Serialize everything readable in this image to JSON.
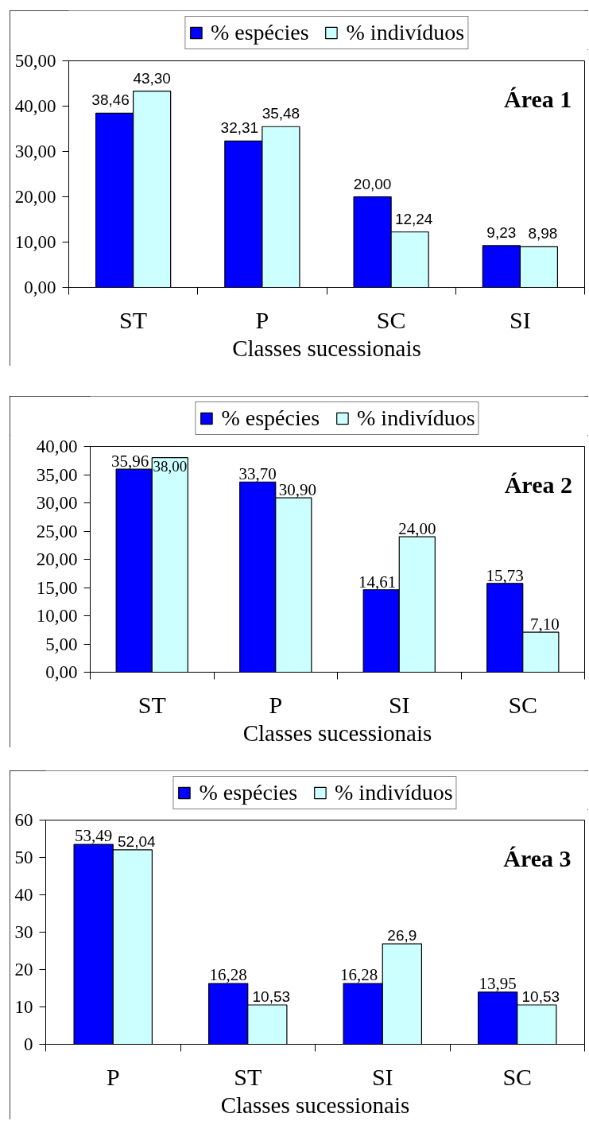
{
  "chart_data": [
    {
      "type": "bar",
      "title": "Área 1",
      "xlabel": "Classes sucessionais",
      "categories": [
        "ST",
        "P",
        "SC",
        "SI"
      ],
      "series": [
        {
          "name": "% espécies",
          "color": "#0000ff",
          "values": [
            38.46,
            32.31,
            20.0,
            9.23
          ],
          "value_labels": [
            "38,46",
            "32,31",
            "20,00",
            "9,23"
          ]
        },
        {
          "name": "% indivíduos",
          "color": "#ccffff",
          "values": [
            43.3,
            35.48,
            12.24,
            8.98
          ],
          "value_labels": [
            "43,30",
            "35,48",
            "12,24",
            "8,98"
          ]
        }
      ],
      "ylim": [
        0,
        50
      ],
      "yticks": [
        {
          "value": 0,
          "label": "0,00"
        },
        {
          "value": 10,
          "label": "10,00"
        },
        {
          "value": 20,
          "label": "20,00"
        },
        {
          "value": 30,
          "label": "30,00"
        },
        {
          "value": 40,
          "label": "40,00"
        },
        {
          "value": 50,
          "label": "50,00"
        }
      ],
      "legend": "top",
      "grid": false
    },
    {
      "type": "bar",
      "title": "Área 2",
      "xlabel": "Classes sucessionais",
      "categories": [
        "ST",
        "P",
        "SI",
        "SC"
      ],
      "series": [
        {
          "name": "% espécies",
          "color": "#0000ff",
          "values": [
            35.96,
            33.7,
            14.61,
            15.73
          ],
          "value_labels": [
            "35,96",
            "33,70",
            "14,61",
            "15,73"
          ]
        },
        {
          "name": "% indivíduos",
          "color": "#ccffff",
          "values": [
            38.0,
            30.9,
            24.0,
            7.1
          ],
          "value_labels": [
            "38,00",
            "30,90",
            "24,00",
            "7,10"
          ]
        }
      ],
      "ylim": [
        0,
        40
      ],
      "yticks": [
        {
          "value": 0,
          "label": "0,00"
        },
        {
          "value": 5,
          "label": "5,00"
        },
        {
          "value": 10,
          "label": "10,00"
        },
        {
          "value": 15,
          "label": "15,00"
        },
        {
          "value": 20,
          "label": "20,00"
        },
        {
          "value": 25,
          "label": "25,00"
        },
        {
          "value": 30,
          "label": "30,00"
        },
        {
          "value": 35,
          "label": "35,00"
        },
        {
          "value": 40,
          "label": "40,00"
        }
      ],
      "legend": "top",
      "grid": false
    },
    {
      "type": "bar",
      "title": "Área 3",
      "xlabel": "Classes sucessionais",
      "categories": [
        "P",
        "ST",
        "SI",
        "SC"
      ],
      "series": [
        {
          "name": "% espécies",
          "color": "#0000ff",
          "values": [
            53.49,
            16.28,
            16.28,
            13.95
          ],
          "value_labels": [
            "53,49",
            "16,28",
            "16,28",
            "13,95"
          ]
        },
        {
          "name": "% indivíduos",
          "color": "#ccffff",
          "values": [
            52.04,
            10.53,
            26.9,
            10.53
          ],
          "value_labels": [
            "52,04",
            "10,53",
            "26,9",
            "10,53"
          ]
        }
      ],
      "ylim": [
        0,
        60
      ],
      "yticks": [
        0,
        10,
        20,
        30,
        40,
        50,
        60
      ],
      "legend": "top",
      "grid": false
    }
  ]
}
